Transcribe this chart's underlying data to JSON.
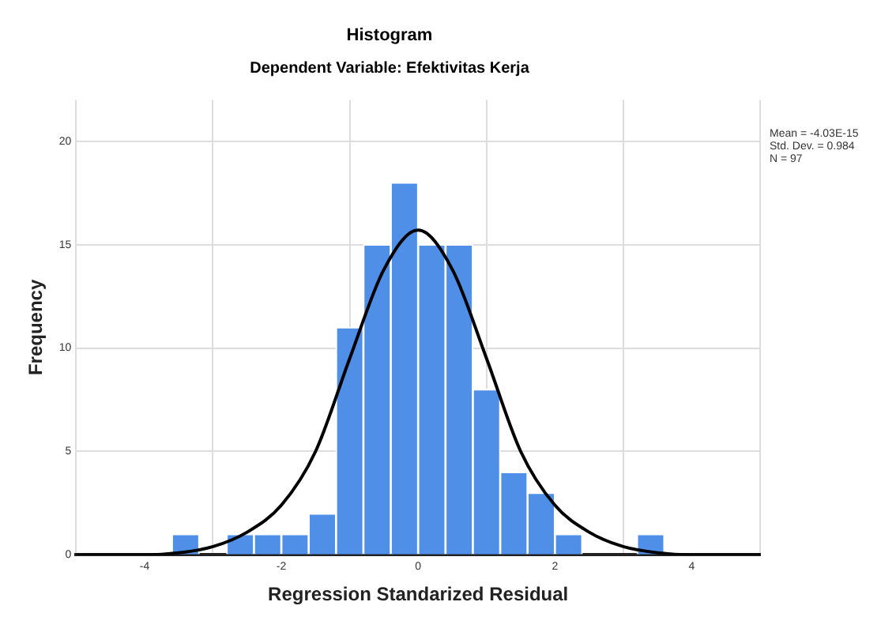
{
  "chart_data": {
    "type": "histogram",
    "title": "Histogram",
    "subtitle": "Dependent Variable: Efektivitas Kerja",
    "xlabel": "Regression Standarized Residual",
    "ylabel": "Frequency",
    "bins": [
      -3.6,
      -3.2,
      -2.8,
      -2.4,
      -2.0,
      -1.6,
      -1.2,
      -0.8,
      -0.4,
      0,
      0.4,
      0.8,
      1.2,
      1.6,
      2.0,
      2.4,
      2.8,
      3.2,
      3.6
    ],
    "values": [
      1,
      0,
      1,
      1,
      1,
      2,
      11,
      15,
      18,
      15,
      15,
      8,
      4,
      3,
      1,
      0,
      0,
      1
    ],
    "color": "#4f8fe8",
    "series": [
      {
        "type": "line",
        "color": "#000000",
        "x": [
          -5,
          -4.5,
          -4,
          -3.5,
          -3,
          -2.5,
          -2,
          -1.5,
          -1,
          -0.5,
          0,
          0.5,
          1,
          1.5,
          2,
          2.5,
          3,
          3.5,
          4,
          4.5,
          5
        ],
        "values": [
          0,
          0,
          0,
          0.1,
          0.4,
          1.1,
          2.4,
          5,
          9.5,
          13.8,
          15.7,
          13.8,
          9.5,
          5,
          2.4,
          1.1,
          0.4,
          0.1,
          0,
          0,
          0
        ]
      }
    ],
    "xlim": [
      -5,
      5
    ],
    "xticks": [
      -4,
      -2,
      0,
      2,
      4
    ],
    "ylim": [
      0,
      22
    ],
    "yticks": [
      0,
      5,
      10,
      15,
      20
    ],
    "grid": true,
    "legend": false,
    "annotations": [
      "Mean = -4.03E-15",
      "Std. Dev. = 0.984",
      "N = 97"
    ]
  }
}
